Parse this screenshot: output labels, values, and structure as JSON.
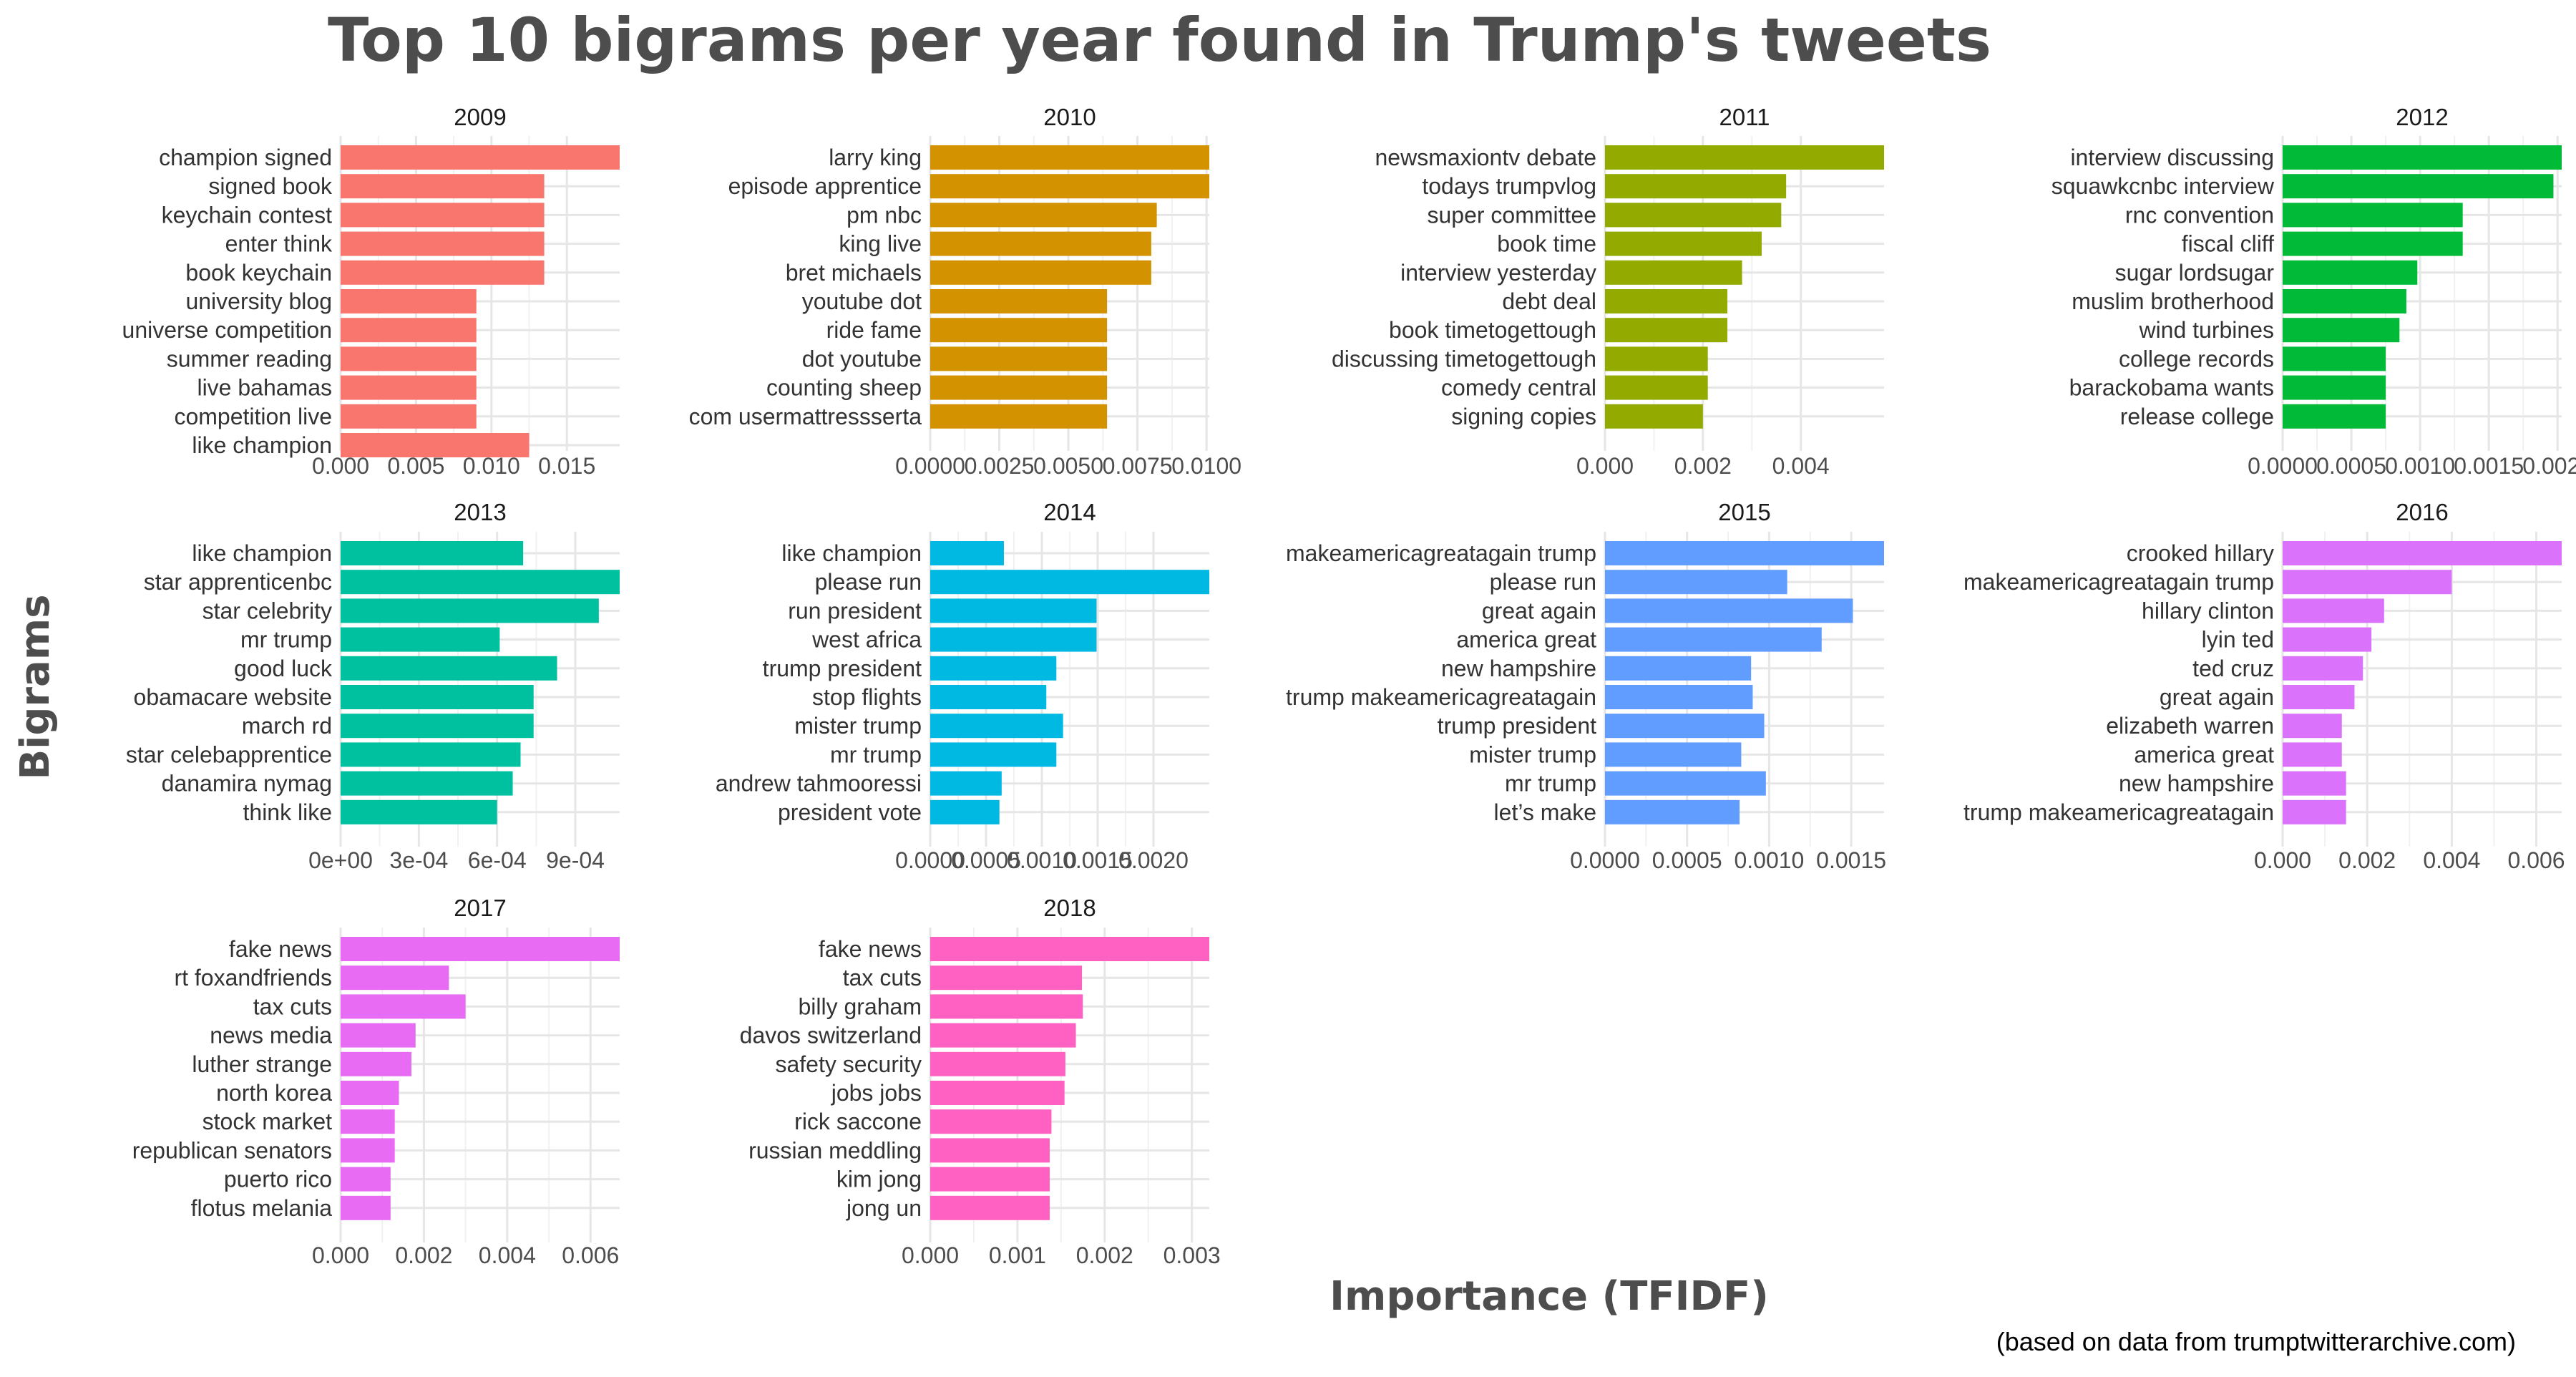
{
  "title": "Top 10 bigrams per year found in Trump's tweets",
  "xlabel": "Importance (TFIDF)",
  "ylabel": "Bigrams",
  "caption": "(based on data from trumptwitterarchive.com)",
  "chart_data": {
    "type": "bar",
    "orientation": "horizontal",
    "grid": true,
    "facets": [
      {
        "name": "2009",
        "color": "#F8766D",
        "categories": [
          "champion signed",
          "signed book",
          "keychain contest",
          "enter think",
          "book keychain",
          "university blog",
          "universe competition",
          "summer reading",
          "live bahamas",
          "competition live",
          "like champion"
        ],
        "values": [
          0.0185,
          0.0135,
          0.0135,
          0.0135,
          0.0135,
          0.009,
          0.009,
          0.009,
          0.009,
          0.009,
          0.0125
        ],
        "xlim": [
          0,
          0.0185
        ],
        "ticks": [
          0,
          0.005,
          0.01,
          0.015
        ],
        "tick_labels": [
          "0.000",
          "0.005",
          "0.010",
          "0.015"
        ]
      },
      {
        "name": "2010",
        "color": "#D39200",
        "categories": [
          "larry king",
          "episode apprentice",
          "pm nbc",
          "king live",
          "bret michaels",
          "youtube dot",
          "ride fame",
          "dot youtube",
          "counting sheep",
          "com usermattressserta"
        ],
        "values": [
          0.0101,
          0.0101,
          0.0082,
          0.008,
          0.008,
          0.0064,
          0.0064,
          0.0064,
          0.0064,
          0.0064
        ],
        "xlim": [
          0,
          0.0101
        ],
        "ticks": [
          0,
          0.0025,
          0.005,
          0.0075,
          0.01
        ],
        "tick_labels": [
          "0.0000",
          "0.0025",
          "0.0050",
          "0.0075",
          "0.0100"
        ]
      },
      {
        "name": "2011",
        "color": "#93AA00",
        "categories": [
          "newsmaxiontv debate",
          "todays trumpvlog",
          "super committee",
          "book time",
          "interview yesterday",
          "debt deal",
          "book timetogettough",
          "discussing timetogettough",
          "comedy central",
          "signing copies"
        ],
        "values": [
          0.0057,
          0.0037,
          0.0036,
          0.0032,
          0.0028,
          0.0025,
          0.0025,
          0.0021,
          0.0021,
          0.002
        ],
        "xlim": [
          0,
          0.0057
        ],
        "ticks": [
          0,
          0.002,
          0.004
        ],
        "tick_labels": [
          "0.000",
          "0.002",
          "0.004"
        ]
      },
      {
        "name": "2012",
        "color": "#00BA38",
        "categories": [
          "interview discussing",
          "squawkcnbc interview",
          "rnc convention",
          "fiscal cliff",
          "sugar lordsugar",
          "muslim brotherhood",
          "wind turbines",
          "college records",
          "barackobama wants",
          "release college"
        ],
        "values": [
          0.00203,
          0.00197,
          0.00131,
          0.00131,
          0.00098,
          0.0009,
          0.00085,
          0.00075,
          0.00075,
          0.00075
        ],
        "xlim": [
          0,
          0.00203
        ],
        "ticks": [
          0,
          0.0005,
          0.001,
          0.0015,
          0.002
        ],
        "tick_labels": [
          "0.0000",
          "0.0005",
          "0.0010",
          "0.0015",
          "0.0020"
        ]
      },
      {
        "name": "2013",
        "color": "#00C19F",
        "categories": [
          "like champion",
          "star apprenticenbc",
          "star celebrity",
          "mr trump",
          "good luck",
          "obamacare website",
          "march rd",
          "star celebapprentice",
          "danamira nymag",
          "think like"
        ],
        "values": [
          0.0007,
          0.00107,
          0.00099,
          0.00061,
          0.00083,
          0.00074,
          0.00074,
          0.00069,
          0.00066,
          0.0006
        ],
        "xlim": [
          0,
          0.00107
        ],
        "ticks": [
          0,
          0.0003,
          0.0006,
          0.0009
        ],
        "tick_labels": [
          "0e+00",
          "3e-04",
          "6e-04",
          "9e-04"
        ]
      },
      {
        "name": "2014",
        "color": "#00B9E3",
        "categories": [
          "like champion",
          "please run",
          "run president",
          "west africa",
          "trump president",
          "stop flights",
          "mister trump",
          "mr trump",
          "andrew tahmooressi",
          "president vote"
        ],
        "values": [
          0.00066,
          0.0025,
          0.00149,
          0.00149,
          0.00113,
          0.00104,
          0.00119,
          0.00113,
          0.00064,
          0.00062
        ],
        "xlim": [
          0,
          0.0025
        ],
        "ticks": [
          0,
          0.0005,
          0.001,
          0.0015,
          0.002
        ],
        "tick_labels": [
          "0.0000",
          "0.0005",
          "0.0010",
          "0.0015",
          "0.0020"
        ]
      },
      {
        "name": "2015",
        "color": "#619CFF",
        "categories": [
          "makeamericagreatagain trump",
          "please run",
          "great again",
          "america great",
          "new hampshire",
          "trump makeamericagreatagain",
          "trump president",
          "mister trump",
          "mr trump",
          "let’s make"
        ],
        "values": [
          0.0017,
          0.00111,
          0.00151,
          0.00132,
          0.00089,
          0.0009,
          0.00097,
          0.00083,
          0.00098,
          0.00082
        ],
        "xlim": [
          0,
          0.0017
        ],
        "ticks": [
          0,
          0.0005,
          0.001,
          0.0015
        ],
        "tick_labels": [
          "0.0000",
          "0.0005",
          "0.0010",
          "0.0015"
        ]
      },
      {
        "name": "2016",
        "color": "#DB72FB",
        "categories": [
          "crooked hillary",
          "makeamericagreatagain trump",
          "hillary clinton",
          "lyin ted",
          "ted cruz",
          "great again",
          "elizabeth warren",
          "america great",
          "new hampshire",
          "trump makeamericagreatagain"
        ],
        "values": [
          0.0066,
          0.004,
          0.0024,
          0.0021,
          0.0019,
          0.0017,
          0.0014,
          0.0014,
          0.0015,
          0.0015
        ],
        "xlim": [
          0,
          0.0066
        ],
        "ticks": [
          0,
          0.002,
          0.004,
          0.006
        ],
        "tick_labels": [
          "0.000",
          "0.002",
          "0.004",
          "0.006"
        ]
      },
      {
        "name": "2017",
        "color": "#E76BF3",
        "categories": [
          "fake news",
          "rt foxandfriends",
          "tax cuts",
          "news media",
          "luther strange",
          "north korea",
          "stock market",
          "republican senators",
          "puerto rico",
          "flotus melania"
        ],
        "values": [
          0.0067,
          0.0026,
          0.003,
          0.0018,
          0.0017,
          0.0014,
          0.0013,
          0.0013,
          0.0012,
          0.0012
        ],
        "xlim": [
          0,
          0.0067
        ],
        "ticks": [
          0,
          0.002,
          0.004,
          0.006
        ],
        "tick_labels": [
          "0.000",
          "0.002",
          "0.004",
          "0.006"
        ]
      },
      {
        "name": "2018",
        "color": "#FF61C3",
        "categories": [
          "fake news",
          "tax cuts",
          "billy graham",
          "davos switzerland",
          "safety security",
          "jobs jobs",
          "rick saccone",
          "russian meddling",
          "kim jong",
          "jong un"
        ],
        "values": [
          0.0032,
          0.00174,
          0.00175,
          0.00167,
          0.00155,
          0.00154,
          0.00139,
          0.00137,
          0.00137,
          0.00137
        ],
        "xlim": [
          0,
          0.0032
        ],
        "ticks": [
          0,
          0.001,
          0.002,
          0.003
        ],
        "tick_labels": [
          "0.000",
          "0.001",
          "0.002",
          "0.003"
        ]
      }
    ]
  }
}
